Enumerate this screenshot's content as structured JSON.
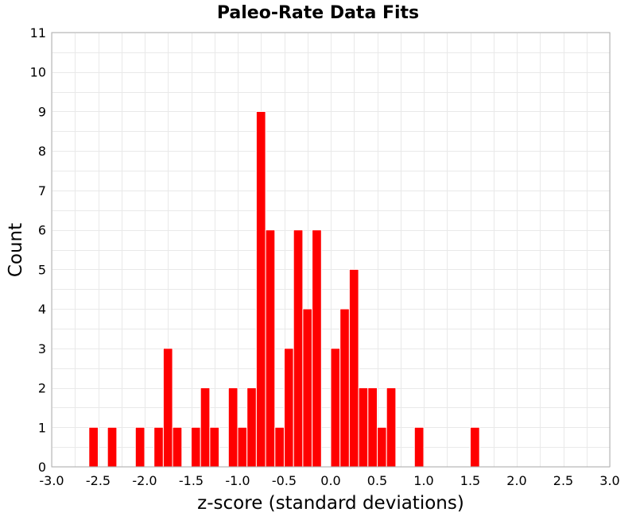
{
  "chart_data": {
    "type": "bar",
    "title": "Paleo-Rate Data Fits",
    "xlabel": "z-score (standard deviations)",
    "ylabel": "Count",
    "xlim": [
      -3.0,
      3.0
    ],
    "ylim": [
      0,
      11
    ],
    "bin_width": 0.1,
    "x_ticks": [
      "-3.0",
      "-2.5",
      "-2.0",
      "-1.5",
      "-1.0",
      "-0.5",
      "0.0",
      "0.5",
      "1.0",
      "1.5",
      "2.0",
      "2.5",
      "3.0"
    ],
    "y_ticks": [
      "0",
      "1",
      "2",
      "3",
      "4",
      "5",
      "6",
      "7",
      "8",
      "9",
      "10",
      "11"
    ],
    "grid": true,
    "bar_color": "#ff0000",
    "bins": [
      {
        "x": -2.55,
        "count": 1
      },
      {
        "x": -2.35,
        "count": 1
      },
      {
        "x": -2.05,
        "count": 1
      },
      {
        "x": -1.85,
        "count": 1
      },
      {
        "x": -1.75,
        "count": 3
      },
      {
        "x": -1.65,
        "count": 1
      },
      {
        "x": -1.45,
        "count": 1
      },
      {
        "x": -1.35,
        "count": 2
      },
      {
        "x": -1.25,
        "count": 1
      },
      {
        "x": -1.05,
        "count": 2
      },
      {
        "x": -0.95,
        "count": 1
      },
      {
        "x": -0.85,
        "count": 2
      },
      {
        "x": -0.75,
        "count": 9
      },
      {
        "x": -0.65,
        "count": 6
      },
      {
        "x": -0.55,
        "count": 1
      },
      {
        "x": -0.45,
        "count": 3
      },
      {
        "x": -0.35,
        "count": 6
      },
      {
        "x": -0.25,
        "count": 4
      },
      {
        "x": -0.15,
        "count": 6
      },
      {
        "x": 0.05,
        "count": 3
      },
      {
        "x": 0.15,
        "count": 4
      },
      {
        "x": 0.25,
        "count": 5
      },
      {
        "x": 0.35,
        "count": 2
      },
      {
        "x": 0.45,
        "count": 2
      },
      {
        "x": 0.55,
        "count": 1
      },
      {
        "x": 0.65,
        "count": 2
      },
      {
        "x": 0.95,
        "count": 1
      },
      {
        "x": 1.55,
        "count": 1
      }
    ]
  }
}
